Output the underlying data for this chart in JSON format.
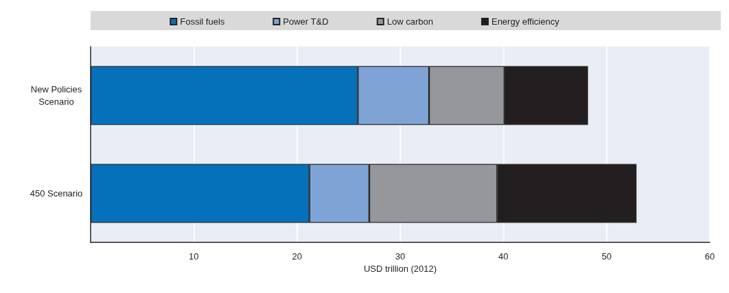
{
  "chart_data": {
    "type": "bar",
    "orientation": "horizontal",
    "stacked": true,
    "categories": [
      "New Policies\nScenario",
      "450 Scenario"
    ],
    "series": [
      {
        "name": "Fossil fuels",
        "color": "#0571bb",
        "values": [
          25.9,
          21.2
        ]
      },
      {
        "name": "Power T&D",
        "color": "#7fa3d5",
        "values": [
          6.9,
          5.8
        ]
      },
      {
        "name": "Low carbon",
        "color": "#96979b",
        "values": [
          7.3,
          12.4
        ]
      },
      {
        "name": "Energy efficiency",
        "color": "#231f20",
        "values": [
          8.1,
          13.5
        ]
      }
    ],
    "xlabel": "USD trillion (2012)",
    "xlim": [
      0,
      60
    ],
    "xticks": [
      {
        "value": 0,
        "label": null
      },
      10,
      20,
      30,
      40,
      50,
      60
    ],
    "grid": "x",
    "legend": "top"
  }
}
